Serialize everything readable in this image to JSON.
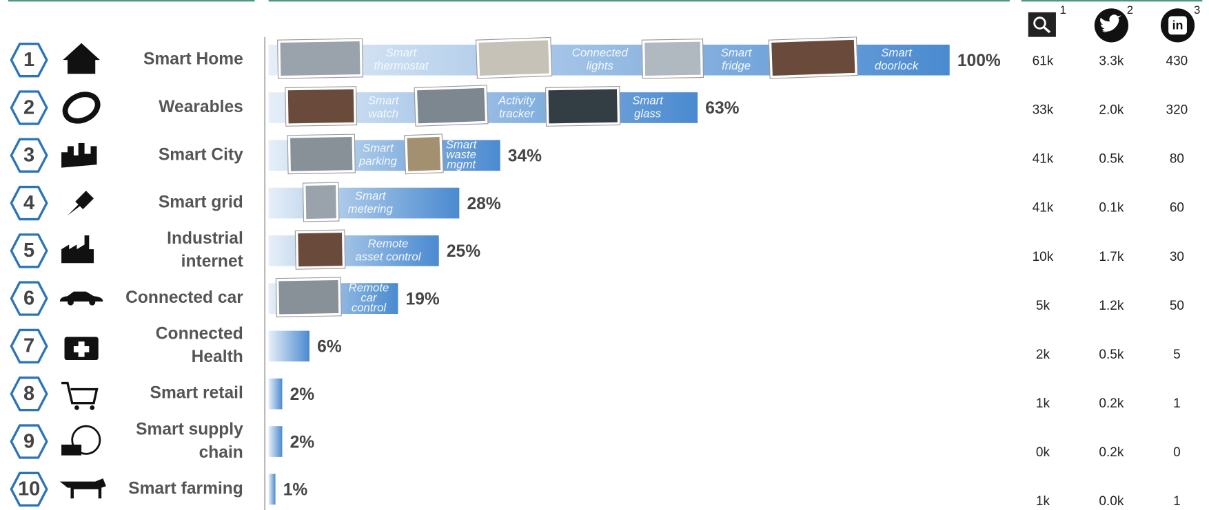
{
  "header": {
    "column_notes": [
      "1",
      "2",
      "3"
    ]
  },
  "rows": [
    {
      "rank": "1",
      "name": [
        "Smart Home"
      ],
      "value": 100,
      "value_label": "100%",
      "items": [
        {
          "label": [
            "Smart",
            "thermostat"
          ]
        },
        {
          "label": [
            "Connected",
            "lights"
          ]
        },
        {
          "label": [
            "Smart",
            "fridge"
          ]
        },
        {
          "label": [
            "Smart",
            "doorlock"
          ]
        }
      ],
      "search": "61k",
      "twitter": "3.3k",
      "linkedin": "430"
    },
    {
      "rank": "2",
      "name": [
        "Wearables"
      ],
      "value": 63,
      "value_label": "63%",
      "items": [
        {
          "label": [
            "Smart",
            "watch"
          ]
        },
        {
          "label": [
            "Activity",
            "tracker"
          ]
        },
        {
          "label": [
            "Smart",
            "glass"
          ]
        }
      ],
      "search": "33k",
      "twitter": "2.0k",
      "linkedin": "320"
    },
    {
      "rank": "3",
      "name": [
        "Smart City"
      ],
      "value": 34,
      "value_label": "34%",
      "items": [
        {
          "label": [
            "Smart",
            "parking"
          ]
        },
        {
          "label": [
            "Smart",
            "waste",
            "mgmt"
          ]
        }
      ],
      "search": "41k",
      "twitter": "0.5k",
      "linkedin": "80"
    },
    {
      "rank": "4",
      "name": [
        "Smart grid"
      ],
      "value": 28,
      "value_label": "28%",
      "items": [
        {
          "label": [
            "Smart",
            "metering"
          ]
        }
      ],
      "search": "41k",
      "twitter": "0.1k",
      "linkedin": "60"
    },
    {
      "rank": "5",
      "name": [
        "Industrial",
        "internet"
      ],
      "value": 25,
      "value_label": "25%",
      "items": [
        {
          "label": [
            "Remote",
            "asset control"
          ]
        }
      ],
      "search": "10k",
      "twitter": "1.7k",
      "linkedin": "30"
    },
    {
      "rank": "6",
      "name": [
        "Connected car"
      ],
      "value": 19,
      "value_label": "19%",
      "items": [
        {
          "label": [
            "Remote",
            "car",
            "control"
          ]
        }
      ],
      "search": "5k",
      "twitter": "1.2k",
      "linkedin": "50"
    },
    {
      "rank": "7",
      "name": [
        "Connected",
        "Health"
      ],
      "value": 6,
      "value_label": "6%",
      "items": [],
      "search": "2k",
      "twitter": "0.5k",
      "linkedin": "5"
    },
    {
      "rank": "8",
      "name": [
        "Smart retail"
      ],
      "value": 2,
      "value_label": "2%",
      "items": [],
      "search": "1k",
      "twitter": "0.2k",
      "linkedin": "1"
    },
    {
      "rank": "9",
      "name": [
        "Smart supply",
        "chain"
      ],
      "value": 2,
      "value_label": "2%",
      "items": [],
      "search": "0k",
      "twitter": "0.2k",
      "linkedin": "0"
    },
    {
      "rank": "10",
      "name": [
        "Smart farming"
      ],
      "value": 1,
      "value_label": "1%",
      "items": [],
      "search": "1k",
      "twitter": "0.0k",
      "linkedin": "1"
    }
  ]
}
